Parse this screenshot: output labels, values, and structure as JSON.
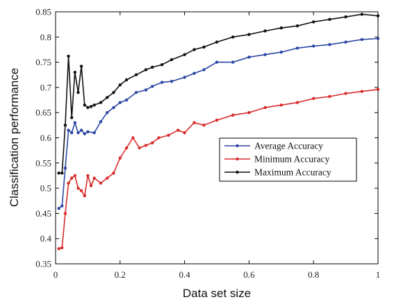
{
  "chart_data": {
    "type": "line",
    "title": "",
    "xlabel": "Data set size",
    "ylabel": "Classification performance",
    "xlim": [
      0,
      1
    ],
    "ylim": [
      0.35,
      0.85
    ],
    "xticks": [
      0,
      0.2,
      0.4,
      0.6,
      0.8,
      1
    ],
    "xtick_labels": [
      "0",
      "0.2",
      "0.4",
      "0.6",
      "0.8",
      "1"
    ],
    "yticks": [
      0.35,
      0.4,
      0.45,
      0.5,
      0.55,
      0.6,
      0.65,
      0.7,
      0.75,
      0.8,
      0.85
    ],
    "ytick_labels": [
      "0.35",
      "0.4",
      "0.45",
      "0.5",
      "0.55",
      "0.6",
      "0.65",
      "0.7",
      "0.75",
      "0.8",
      "0.85"
    ],
    "grid": false,
    "legend_position": "center-right",
    "series": [
      {
        "name": "Average Accuracy",
        "color": "#2b46a3",
        "x": [
          0.01,
          0.02,
          0.03,
          0.04,
          0.05,
          0.06,
          0.07,
          0.08,
          0.09,
          0.1,
          0.12,
          0.14,
          0.16,
          0.18,
          0.2,
          0.22,
          0.25,
          0.28,
          0.3,
          0.33,
          0.36,
          0.4,
          0.43,
          0.46,
          0.5,
          0.55,
          0.6,
          0.65,
          0.7,
          0.75,
          0.8,
          0.85,
          0.9,
          0.95,
          1.0
        ],
        "y": [
          0.46,
          0.465,
          0.54,
          0.615,
          0.61,
          0.63,
          0.61,
          0.615,
          0.608,
          0.612,
          0.61,
          0.632,
          0.65,
          0.66,
          0.67,
          0.675,
          0.69,
          0.695,
          0.702,
          0.71,
          0.712,
          0.72,
          0.728,
          0.735,
          0.75,
          0.75,
          0.76,
          0.765,
          0.77,
          0.778,
          0.782,
          0.785,
          0.79,
          0.795,
          0.797
        ]
      },
      {
        "name": "Minimum Accuracy",
        "color": "#d82a2a",
        "x": [
          0.01,
          0.02,
          0.03,
          0.04,
          0.05,
          0.06,
          0.07,
          0.08,
          0.09,
          0.1,
          0.11,
          0.12,
          0.14,
          0.16,
          0.18,
          0.2,
          0.22,
          0.24,
          0.26,
          0.28,
          0.3,
          0.32,
          0.35,
          0.38,
          0.4,
          0.43,
          0.46,
          0.5,
          0.55,
          0.6,
          0.65,
          0.7,
          0.75,
          0.8,
          0.85,
          0.9,
          0.95,
          1.0
        ],
        "y": [
          0.38,
          0.382,
          0.45,
          0.51,
          0.52,
          0.525,
          0.5,
          0.495,
          0.485,
          0.525,
          0.505,
          0.52,
          0.51,
          0.52,
          0.53,
          0.56,
          0.58,
          0.6,
          0.58,
          0.585,
          0.59,
          0.6,
          0.605,
          0.615,
          0.61,
          0.63,
          0.625,
          0.635,
          0.645,
          0.65,
          0.66,
          0.665,
          0.67,
          0.678,
          0.682,
          0.688,
          0.692,
          0.696
        ]
      },
      {
        "name": "Maximum Accuracy",
        "color": "#111111",
        "x": [
          0.01,
          0.02,
          0.03,
          0.04,
          0.05,
          0.06,
          0.07,
          0.08,
          0.09,
          0.1,
          0.11,
          0.12,
          0.14,
          0.16,
          0.18,
          0.2,
          0.22,
          0.25,
          0.28,
          0.3,
          0.33,
          0.36,
          0.4,
          0.43,
          0.46,
          0.5,
          0.55,
          0.6,
          0.65,
          0.7,
          0.75,
          0.8,
          0.85,
          0.9,
          0.95,
          1.0
        ],
        "y": [
          0.53,
          0.53,
          0.625,
          0.762,
          0.64,
          0.73,
          0.69,
          0.742,
          0.665,
          0.66,
          0.662,
          0.665,
          0.67,
          0.68,
          0.69,
          0.705,
          0.715,
          0.725,
          0.735,
          0.74,
          0.745,
          0.755,
          0.765,
          0.775,
          0.78,
          0.79,
          0.8,
          0.805,
          0.812,
          0.818,
          0.822,
          0.83,
          0.835,
          0.84,
          0.845,
          0.842
        ]
      }
    ]
  }
}
